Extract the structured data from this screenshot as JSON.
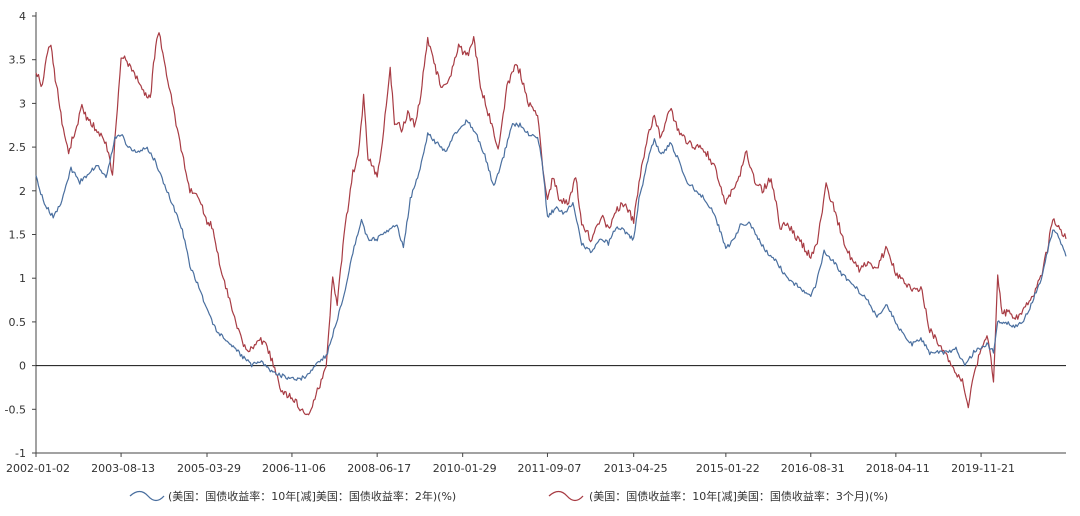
{
  "chart_data": {
    "type": "line",
    "title": "",
    "xlabel": "",
    "ylabel": "",
    "ylim": [
      -1,
      4
    ],
    "yticks": [
      4,
      3.5,
      3,
      2.5,
      2,
      1.5,
      1,
      0.5,
      0,
      -0.5,
      -1
    ],
    "x_range": [
      "2002-01-02",
      "2021-06-30"
    ],
    "x_tick_labels": [
      "2002-01-02",
      "2003-08-13",
      "2005-03-29",
      "2006-11-06",
      "2008-06-17",
      "2010-01-29",
      "2011-09-07",
      "2013-04-25",
      "2015-01-22",
      "2016-08-31",
      "2018-04-11",
      "2019-11-21"
    ],
    "zero_line": true,
    "grid": false,
    "legend_position": "bottom",
    "series": [
      {
        "name": "(美国：国债收益率：10年[减]美国：国债收益率：2年)(%)",
        "color": "#4a6f9f",
        "points": [
          [
            "2002-01-02",
            2.15
          ],
          [
            "2002-03-01",
            1.85
          ],
          [
            "2002-05-01",
            1.7
          ],
          [
            "2002-07-01",
            1.9
          ],
          [
            "2002-09-01",
            2.25
          ],
          [
            "2002-11-01",
            2.1
          ],
          [
            "2003-01-01",
            2.2
          ],
          [
            "2003-03-01",
            2.3
          ],
          [
            "2003-05-01",
            2.15
          ],
          [
            "2003-07-01",
            2.6
          ],
          [
            "2003-08-13",
            2.65
          ],
          [
            "2003-10-01",
            2.5
          ],
          [
            "2003-12-01",
            2.45
          ],
          [
            "2004-02-01",
            2.5
          ],
          [
            "2004-04-01",
            2.35
          ],
          [
            "2004-06-01",
            2.1
          ],
          [
            "2004-08-01",
            1.85
          ],
          [
            "2004-10-01",
            1.6
          ],
          [
            "2004-12-01",
            1.15
          ],
          [
            "2005-02-01",
            0.9
          ],
          [
            "2005-03-29",
            0.65
          ],
          [
            "2005-06-01",
            0.4
          ],
          [
            "2005-09-01",
            0.25
          ],
          [
            "2005-12-01",
            0.1
          ],
          [
            "2006-02-01",
            0.0
          ],
          [
            "2006-04-01",
            0.05
          ],
          [
            "2006-06-01",
            -0.05
          ],
          [
            "2006-08-01",
            -0.1
          ],
          [
            "2006-11-06",
            -0.15
          ],
          [
            "2007-01-01",
            -0.15
          ],
          [
            "2007-03-01",
            -0.1
          ],
          [
            "2007-05-01",
            0.05
          ],
          [
            "2007-07-01",
            0.1
          ],
          [
            "2007-09-01",
            0.45
          ],
          [
            "2007-11-01",
            0.8
          ],
          [
            "2008-01-01",
            1.3
          ],
          [
            "2008-03-01",
            1.65
          ],
          [
            "2008-04-15",
            1.45
          ],
          [
            "2008-06-17",
            1.45
          ],
          [
            "2008-09-01",
            1.55
          ],
          [
            "2008-11-01",
            1.6
          ],
          [
            "2008-12-15",
            1.35
          ],
          [
            "2009-02-01",
            1.9
          ],
          [
            "2009-04-01",
            2.2
          ],
          [
            "2009-06-01",
            2.65
          ],
          [
            "2009-08-01",
            2.55
          ],
          [
            "2009-10-01",
            2.45
          ],
          [
            "2009-12-01",
            2.65
          ],
          [
            "2010-01-29",
            2.75
          ],
          [
            "2010-03-01",
            2.8
          ],
          [
            "2010-05-01",
            2.65
          ],
          [
            "2010-07-01",
            2.4
          ],
          [
            "2010-09-01",
            2.05
          ],
          [
            "2010-11-01",
            2.35
          ],
          [
            "2011-01-01",
            2.75
          ],
          [
            "2011-03-01",
            2.75
          ],
          [
            "2011-05-01",
            2.65
          ],
          [
            "2011-07-01",
            2.6
          ],
          [
            "2011-08-01",
            2.35
          ],
          [
            "2011-09-07",
            1.7
          ],
          [
            "2011-11-01",
            1.8
          ],
          [
            "2012-01-01",
            1.75
          ],
          [
            "2012-03-01",
            1.85
          ],
          [
            "2012-05-01",
            1.4
          ],
          [
            "2012-07-01",
            1.3
          ],
          [
            "2012-09-01",
            1.45
          ],
          [
            "2012-11-01",
            1.4
          ],
          [
            "2013-01-01",
            1.6
          ],
          [
            "2013-04-25",
            1.45
          ],
          [
            "2013-06-01",
            1.9
          ],
          [
            "2013-08-01",
            2.35
          ],
          [
            "2013-09-15",
            2.6
          ],
          [
            "2013-11-01",
            2.4
          ],
          [
            "2014-01-01",
            2.55
          ],
          [
            "2014-03-01",
            2.35
          ],
          [
            "2014-05-01",
            2.1
          ],
          [
            "2014-07-01",
            2.0
          ],
          [
            "2014-09-01",
            1.9
          ],
          [
            "2014-11-01",
            1.75
          ],
          [
            "2015-01-22",
            1.35
          ],
          [
            "2015-03-01",
            1.4
          ],
          [
            "2015-05-01",
            1.6
          ],
          [
            "2015-07-01",
            1.65
          ],
          [
            "2015-09-01",
            1.45
          ],
          [
            "2015-11-01",
            1.3
          ],
          [
            "2016-01-01",
            1.2
          ],
          [
            "2016-03-01",
            1.05
          ],
          [
            "2016-05-01",
            0.95
          ],
          [
            "2016-08-31",
            0.8
          ],
          [
            "2016-10-01",
            0.9
          ],
          [
            "2016-12-01",
            1.3
          ],
          [
            "2017-02-01",
            1.2
          ],
          [
            "2017-04-01",
            1.05
          ],
          [
            "2017-06-01",
            0.95
          ],
          [
            "2017-08-01",
            0.85
          ],
          [
            "2017-10-01",
            0.75
          ],
          [
            "2017-12-01",
            0.55
          ],
          [
            "2018-02-01",
            0.7
          ],
          [
            "2018-04-11",
            0.5
          ],
          [
            "2018-06-01",
            0.35
          ],
          [
            "2018-08-01",
            0.25
          ],
          [
            "2018-10-01",
            0.3
          ],
          [
            "2018-12-01",
            0.15
          ],
          [
            "2019-02-01",
            0.15
          ],
          [
            "2019-04-01",
            0.15
          ],
          [
            "2019-06-01",
            0.2
          ],
          [
            "2019-08-01",
            0.0
          ],
          [
            "2019-10-01",
            0.15
          ],
          [
            "2019-11-21",
            0.2
          ],
          [
            "2020-01-01",
            0.25
          ],
          [
            "2020-02-15",
            0.15
          ],
          [
            "2020-03-15",
            0.5
          ],
          [
            "2020-05-01",
            0.5
          ],
          [
            "2020-07-01",
            0.45
          ],
          [
            "2020-09-01",
            0.5
          ],
          [
            "2020-11-01",
            0.7
          ],
          [
            "2021-01-01",
            0.95
          ],
          [
            "2021-02-15",
            1.25
          ],
          [
            "2021-03-31",
            1.55
          ],
          [
            "2021-05-01",
            1.5
          ],
          [
            "2021-06-30",
            1.25
          ]
        ]
      },
      {
        "name": "(美国：国债收益率：10年[减]美国：国债收益率：3个月)(%)",
        "color": "#a83c44",
        "points": [
          [
            "2002-01-02",
            3.35
          ],
          [
            "2002-02-15",
            3.2
          ],
          [
            "2002-03-15",
            3.55
          ],
          [
            "2002-04-15",
            3.65
          ],
          [
            "2002-05-15",
            3.3
          ],
          [
            "2002-07-01",
            2.8
          ],
          [
            "2002-08-15",
            2.45
          ],
          [
            "2002-10-01",
            2.7
          ],
          [
            "2002-11-15",
            2.95
          ],
          [
            "2003-01-01",
            2.8
          ],
          [
            "2003-03-01",
            2.7
          ],
          [
            "2003-05-01",
            2.55
          ],
          [
            "2003-06-15",
            2.2
          ],
          [
            "2003-08-13",
            3.55
          ],
          [
            "2003-10-01",
            3.45
          ],
          [
            "2003-12-01",
            3.3
          ],
          [
            "2004-01-15",
            3.15
          ],
          [
            "2004-03-01",
            3.05
          ],
          [
            "2004-04-01",
            3.55
          ],
          [
            "2004-05-01",
            3.85
          ],
          [
            "2004-06-15",
            3.4
          ],
          [
            "2004-08-01",
            3.0
          ],
          [
            "2004-10-01",
            2.5
          ],
          [
            "2004-12-01",
            2.0
          ],
          [
            "2005-02-01",
            1.95
          ],
          [
            "2005-03-29",
            1.65
          ],
          [
            "2005-05-01",
            1.6
          ],
          [
            "2005-07-01",
            1.1
          ],
          [
            "2005-09-01",
            0.75
          ],
          [
            "2005-11-01",
            0.4
          ],
          [
            "2006-01-01",
            0.15
          ],
          [
            "2006-03-01",
            0.25
          ],
          [
            "2006-05-01",
            0.3
          ],
          [
            "2006-07-01",
            0.0
          ],
          [
            "2006-09-01",
            -0.3
          ],
          [
            "2006-11-06",
            -0.35
          ],
          [
            "2007-01-01",
            -0.5
          ],
          [
            "2007-03-01",
            -0.55
          ],
          [
            "2007-05-01",
            -0.3
          ],
          [
            "2007-07-01",
            0.0
          ],
          [
            "2007-08-15",
            1.0
          ],
          [
            "2007-09-15",
            0.7
          ],
          [
            "2007-11-01",
            1.5
          ],
          [
            "2008-01-01",
            2.2
          ],
          [
            "2008-02-15",
            2.5
          ],
          [
            "2008-03-15",
            3.1
          ],
          [
            "2008-04-15",
            2.4
          ],
          [
            "2008-06-17",
            2.15
          ],
          [
            "2008-08-01",
            2.7
          ],
          [
            "2008-09-15",
            3.4
          ],
          [
            "2008-10-15",
            2.8
          ],
          [
            "2008-12-10",
            2.7
          ],
          [
            "2009-01-15",
            2.9
          ],
          [
            "2009-03-01",
            2.75
          ],
          [
            "2009-04-15",
            3.1
          ],
          [
            "2009-06-01",
            3.75
          ],
          [
            "2009-07-15",
            3.45
          ],
          [
            "2009-09-01",
            3.2
          ],
          [
            "2009-11-01",
            3.3
          ],
          [
            "2010-01-01",
            3.65
          ],
          [
            "2010-01-29",
            3.6
          ],
          [
            "2010-03-01",
            3.55
          ],
          [
            "2010-04-15",
            3.75
          ],
          [
            "2010-06-01",
            3.2
          ],
          [
            "2010-08-01",
            2.85
          ],
          [
            "2010-10-01",
            2.45
          ],
          [
            "2010-12-01",
            3.2
          ],
          [
            "2011-02-01",
            3.45
          ],
          [
            "2011-03-01",
            3.35
          ],
          [
            "2011-05-01",
            3.0
          ],
          [
            "2011-07-01",
            2.85
          ],
          [
            "2011-08-15",
            2.15
          ],
          [
            "2011-09-07",
            1.9
          ],
          [
            "2011-10-15",
            2.15
          ],
          [
            "2011-12-01",
            1.9
          ],
          [
            "2012-02-01",
            1.85
          ],
          [
            "2012-03-20",
            2.15
          ],
          [
            "2012-05-01",
            1.65
          ],
          [
            "2012-07-01",
            1.45
          ],
          [
            "2012-09-15",
            1.7
          ],
          [
            "2012-11-01",
            1.55
          ],
          [
            "2013-01-01",
            1.8
          ],
          [
            "2013-03-01",
            1.85
          ],
          [
            "2013-04-25",
            1.65
          ],
          [
            "2013-06-01",
            2.1
          ],
          [
            "2013-08-01",
            2.65
          ],
          [
            "2013-09-15",
            2.85
          ],
          [
            "2013-11-01",
            2.6
          ],
          [
            "2014-01-01",
            2.95
          ],
          [
            "2014-03-01",
            2.7
          ],
          [
            "2014-05-01",
            2.55
          ],
          [
            "2014-07-01",
            2.5
          ],
          [
            "2014-09-01",
            2.45
          ],
          [
            "2014-11-01",
            2.3
          ],
          [
            "2015-01-22",
            1.85
          ],
          [
            "2015-03-01",
            2.0
          ],
          [
            "2015-05-01",
            2.2
          ],
          [
            "2015-06-15",
            2.45
          ],
          [
            "2015-08-01",
            2.15
          ],
          [
            "2015-10-01",
            2.0
          ],
          [
            "2015-12-01",
            2.15
          ],
          [
            "2016-02-01",
            1.6
          ],
          [
            "2016-04-01",
            1.6
          ],
          [
            "2016-06-01",
            1.45
          ],
          [
            "2016-08-31",
            1.25
          ],
          [
            "2016-10-15",
            1.4
          ],
          [
            "2016-12-15",
            2.05
          ],
          [
            "2017-02-01",
            1.85
          ],
          [
            "2017-04-01",
            1.5
          ],
          [
            "2017-06-01",
            1.25
          ],
          [
            "2017-08-01",
            1.1
          ],
          [
            "2017-10-01",
            1.2
          ],
          [
            "2017-12-01",
            1.1
          ],
          [
            "2018-02-01",
            1.35
          ],
          [
            "2018-04-11",
            1.05
          ],
          [
            "2018-06-01",
            1.0
          ],
          [
            "2018-08-01",
            0.85
          ],
          [
            "2018-10-01",
            0.9
          ],
          [
            "2018-12-01",
            0.4
          ],
          [
            "2019-02-01",
            0.25
          ],
          [
            "2019-04-01",
            0.1
          ],
          [
            "2019-06-01",
            -0.1
          ],
          [
            "2019-07-15",
            -0.15
          ],
          [
            "2019-08-25",
            -0.5
          ],
          [
            "2019-10-01",
            -0.1
          ],
          [
            "2019-11-21",
            0.2
          ],
          [
            "2020-01-01",
            0.35
          ],
          [
            "2020-02-15",
            -0.15
          ],
          [
            "2020-03-15",
            1.0
          ],
          [
            "2020-04-15",
            0.6
          ],
          [
            "2020-06-01",
            0.6
          ],
          [
            "2020-08-01",
            0.55
          ],
          [
            "2020-10-01",
            0.7
          ],
          [
            "2020-12-01",
            0.85
          ],
          [
            "2021-01-15",
            1.05
          ],
          [
            "2021-03-01",
            1.4
          ],
          [
            "2021-03-31",
            1.7
          ],
          [
            "2021-05-01",
            1.6
          ],
          [
            "2021-06-30",
            1.45
          ]
        ]
      }
    ]
  }
}
